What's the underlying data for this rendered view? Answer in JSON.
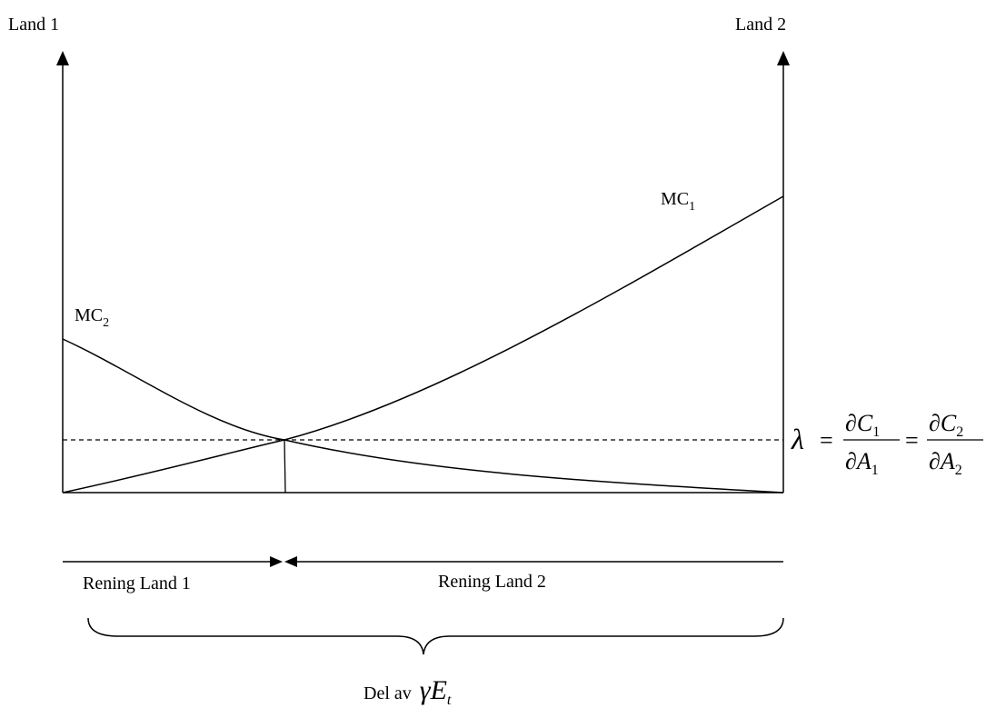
{
  "labels": {
    "left_axis": "Land 1",
    "right_axis": "Land 2",
    "mc1": {
      "base": "MC",
      "sub": "1"
    },
    "mc2": {
      "base": "MC",
      "sub": "2"
    },
    "rening_land1": "Rening Land 1",
    "rening_land2": "Rening Land 2",
    "del_av_prefix": "Del av",
    "del_av_symbol": {
      "base": "γE",
      "sub": "t"
    }
  },
  "equation": {
    "lambda": "λ",
    "equals": "=",
    "num1": {
      "base": "∂C",
      "sub": "1"
    },
    "den1": {
      "base": "∂A",
      "sub": "1"
    },
    "num2": {
      "base": "∂C",
      "sub": "2"
    },
    "den2": {
      "base": "∂A",
      "sub": "2"
    }
  }
}
